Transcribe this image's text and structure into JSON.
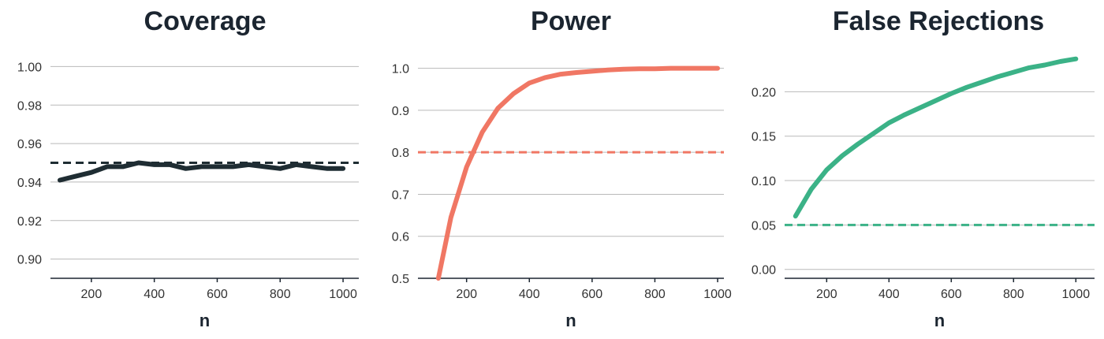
{
  "chart_data": [
    {
      "type": "line",
      "title": "Coverage",
      "xlabel": "n",
      "ylabel": "",
      "xlim": [
        70,
        1050
      ],
      "ylim": [
        0.89,
        1.01
      ],
      "xticks": [
        "200",
        "400",
        "600",
        "800",
        "1000"
      ],
      "xtick_values": [
        200,
        400,
        600,
        800,
        1000
      ],
      "yticks": [
        "0.90",
        "0.92",
        "0.94",
        "0.96",
        "0.98",
        "1.00"
      ],
      "ytick_values": [
        0.9,
        0.92,
        0.94,
        0.96,
        0.98,
        1.0
      ],
      "grid": "horizontal",
      "color": "#1f2d33",
      "reference_line": 0.95,
      "reference_color": "#1f2d33",
      "series": [
        {
          "x": [
            100,
            150,
            200,
            250,
            300,
            350,
            400,
            450,
            500,
            550,
            600,
            650,
            700,
            750,
            800,
            850,
            900,
            950,
            1000
          ],
          "values": [
            0.941,
            0.943,
            0.945,
            0.948,
            0.948,
            0.95,
            0.949,
            0.949,
            0.947,
            0.948,
            0.948,
            0.948,
            0.949,
            0.948,
            0.947,
            0.949,
            0.948,
            0.947,
            0.947
          ]
        }
      ]
    },
    {
      "type": "line",
      "title": "Power",
      "xlabel": "n",
      "ylabel": "",
      "xlim": [
        45,
        1020
      ],
      "ylim": [
        0.5,
        1.05
      ],
      "xticks": [
        "200",
        "400",
        "600",
        "800",
        "1000"
      ],
      "xtick_values": [
        200,
        400,
        600,
        800,
        1000
      ],
      "yticks": [
        "0.5",
        "0.6",
        "0.7",
        "0.8",
        "0.9",
        "1.0"
      ],
      "ytick_values": [
        0.5,
        0.6,
        0.7,
        0.8,
        0.9,
        1.0
      ],
      "grid": "horizontal",
      "color": "#f07764",
      "reference_line": 0.8,
      "reference_color": "#f07764",
      "series": [
        {
          "x": [
            110,
            150,
            200,
            250,
            300,
            350,
            400,
            450,
            500,
            550,
            600,
            650,
            700,
            750,
            800,
            850,
            900,
            950,
            1000
          ],
          "values": [
            0.5,
            0.645,
            0.765,
            0.848,
            0.905,
            0.94,
            0.965,
            0.978,
            0.986,
            0.99,
            0.993,
            0.996,
            0.998,
            0.999,
            0.999,
            1.0,
            1.0,
            1.0,
            1.0
          ]
        }
      ]
    },
    {
      "type": "line",
      "title": "False Rejections",
      "xlabel": "n",
      "ylabel": "",
      "xlim": [
        65,
        1060
      ],
      "ylim": [
        -0.01,
        0.25
      ],
      "xticks": [
        "200",
        "400",
        "600",
        "800",
        "1000"
      ],
      "xtick_values": [
        200,
        400,
        600,
        800,
        1000
      ],
      "yticks": [
        "0.00",
        "0.05",
        "0.10",
        "0.15",
        "0.20"
      ],
      "ytick_values": [
        0.0,
        0.05,
        0.1,
        0.15,
        0.2
      ],
      "grid": "horizontal",
      "color": "#3bb287",
      "reference_line": 0.05,
      "reference_color": "#3bb287",
      "series": [
        {
          "x": [
            100,
            150,
            200,
            250,
            300,
            350,
            400,
            450,
            500,
            550,
            600,
            650,
            700,
            750,
            800,
            850,
            900,
            950,
            1000
          ],
          "values": [
            0.06,
            0.09,
            0.112,
            0.128,
            0.141,
            0.153,
            0.165,
            0.174,
            0.182,
            0.19,
            0.198,
            0.205,
            0.211,
            0.217,
            0.222,
            0.227,
            0.23,
            0.234,
            0.237
          ]
        }
      ]
    }
  ]
}
